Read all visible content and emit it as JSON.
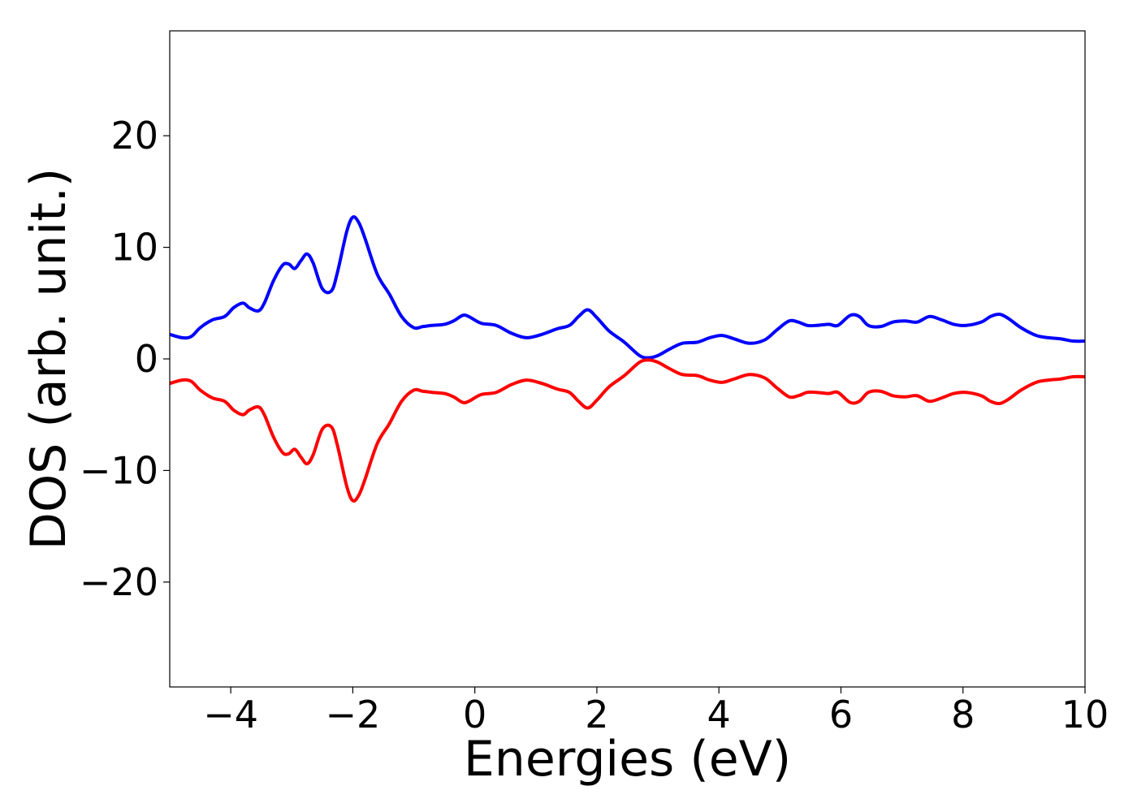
{
  "chart_data": {
    "type": "line",
    "title": "",
    "xlabel": "Energies (eV)",
    "ylabel": "DOS (arb. unit.)",
    "xlim": [
      -5,
      10
    ],
    "ylim": [
      -29.4,
      29.4
    ],
    "xticks": [
      -4,
      -2,
      0,
      2,
      4,
      6,
      8,
      10
    ],
    "xtick_labels": [
      "−4",
      "−2",
      "0",
      "2",
      "4",
      "6",
      "8",
      "10"
    ],
    "yticks": [
      -20,
      -10,
      0,
      10,
      20
    ],
    "ytick_labels": [
      "−20",
      "−10",
      "0",
      "10",
      "20"
    ],
    "grid": false,
    "legend": "none",
    "series": [
      {
        "color": "#0000ff",
        "x": [
          -5.0,
          -4.8,
          -4.65,
          -4.5,
          -4.3,
          -4.1,
          -3.95,
          -3.8,
          -3.7,
          -3.55,
          -3.45,
          -3.3,
          -3.15,
          -3.05,
          -2.95,
          -2.85,
          -2.75,
          -2.65,
          -2.5,
          -2.35,
          -2.25,
          -2.1,
          -2.0,
          -1.9,
          -1.8,
          -1.6,
          -1.4,
          -1.2,
          -1.0,
          -0.85,
          -0.7,
          -0.5,
          -0.35,
          -0.2,
          -0.1,
          0.1,
          0.35,
          0.6,
          0.85,
          1.1,
          1.35,
          1.55,
          1.7,
          1.85,
          2.0,
          2.2,
          2.45,
          2.7,
          2.85,
          3.0,
          3.2,
          3.4,
          3.65,
          3.85,
          4.05,
          4.25,
          4.5,
          4.75,
          4.95,
          5.15,
          5.3,
          5.45,
          5.6,
          5.8,
          5.95,
          6.15,
          6.3,
          6.45,
          6.65,
          6.85,
          7.05,
          7.25,
          7.45,
          7.65,
          7.85,
          8.05,
          8.3,
          8.45,
          8.6,
          8.75,
          8.95,
          9.2,
          9.4,
          9.6,
          9.8,
          10.0
        ],
        "y": [
          2.2,
          1.9,
          2.0,
          2.8,
          3.5,
          3.8,
          4.6,
          5.0,
          4.6,
          4.3,
          5.0,
          7.0,
          8.4,
          8.5,
          8.1,
          8.8,
          9.4,
          8.6,
          6.3,
          6.1,
          7.8,
          11.4,
          12.7,
          12.2,
          10.8,
          7.6,
          5.8,
          3.8,
          2.8,
          2.9,
          3.0,
          3.1,
          3.4,
          3.9,
          3.8,
          3.2,
          3.0,
          2.3,
          1.9,
          2.2,
          2.7,
          3.0,
          3.8,
          4.4,
          3.7,
          2.5,
          1.5,
          0.3,
          0.1,
          0.3,
          0.9,
          1.4,
          1.5,
          1.9,
          2.1,
          1.8,
          1.4,
          1.7,
          2.6,
          3.4,
          3.3,
          3.0,
          3.0,
          3.1,
          3.0,
          3.9,
          3.8,
          3.0,
          2.9,
          3.3,
          3.4,
          3.3,
          3.8,
          3.5,
          3.1,
          3.0,
          3.3,
          3.8,
          4.0,
          3.6,
          2.8,
          2.1,
          1.9,
          1.8,
          1.6,
          1.6
        ]
      },
      {
        "color": "#ff0000",
        "x": [
          -5.0,
          -4.8,
          -4.65,
          -4.5,
          -4.3,
          -4.1,
          -3.95,
          -3.8,
          -3.7,
          -3.55,
          -3.45,
          -3.3,
          -3.15,
          -3.05,
          -2.95,
          -2.85,
          -2.75,
          -2.65,
          -2.5,
          -2.35,
          -2.25,
          -2.1,
          -2.0,
          -1.9,
          -1.8,
          -1.6,
          -1.4,
          -1.2,
          -1.0,
          -0.85,
          -0.7,
          -0.5,
          -0.35,
          -0.2,
          -0.1,
          0.1,
          0.35,
          0.6,
          0.85,
          1.1,
          1.35,
          1.55,
          1.7,
          1.85,
          2.0,
          2.2,
          2.45,
          2.7,
          2.85,
          3.0,
          3.2,
          3.4,
          3.65,
          3.85,
          4.05,
          4.25,
          4.5,
          4.75,
          4.95,
          5.15,
          5.3,
          5.45,
          5.6,
          5.8,
          5.95,
          6.15,
          6.3,
          6.45,
          6.65,
          6.85,
          7.05,
          7.25,
          7.45,
          7.65,
          7.85,
          8.05,
          8.3,
          8.45,
          8.6,
          8.75,
          8.95,
          9.2,
          9.4,
          9.6,
          9.8,
          10.0
        ],
        "y": [
          -2.2,
          -1.9,
          -2.0,
          -2.8,
          -3.5,
          -3.8,
          -4.6,
          -5.0,
          -4.6,
          -4.3,
          -5.0,
          -7.0,
          -8.4,
          -8.5,
          -8.1,
          -8.8,
          -9.4,
          -8.6,
          -6.3,
          -6.1,
          -7.8,
          -11.4,
          -12.7,
          -12.2,
          -10.8,
          -7.6,
          -5.8,
          -3.8,
          -2.8,
          -2.9,
          -3.0,
          -3.1,
          -3.4,
          -3.9,
          -3.8,
          -3.2,
          -3.0,
          -2.3,
          -1.9,
          -2.2,
          -2.7,
          -3.0,
          -3.8,
          -4.4,
          -3.7,
          -2.5,
          -1.5,
          -0.3,
          -0.1,
          -0.3,
          -0.9,
          -1.4,
          -1.5,
          -1.9,
          -2.1,
          -1.8,
          -1.4,
          -1.7,
          -2.6,
          -3.4,
          -3.3,
          -3.0,
          -3.0,
          -3.1,
          -3.0,
          -3.9,
          -3.8,
          -3.0,
          -2.9,
          -3.3,
          -3.4,
          -3.3,
          -3.8,
          -3.5,
          -3.1,
          -3.0,
          -3.3,
          -3.8,
          -4.0,
          -3.6,
          -2.8,
          -2.1,
          -1.9,
          -1.8,
          -1.6,
          -1.6
        ]
      }
    ]
  }
}
